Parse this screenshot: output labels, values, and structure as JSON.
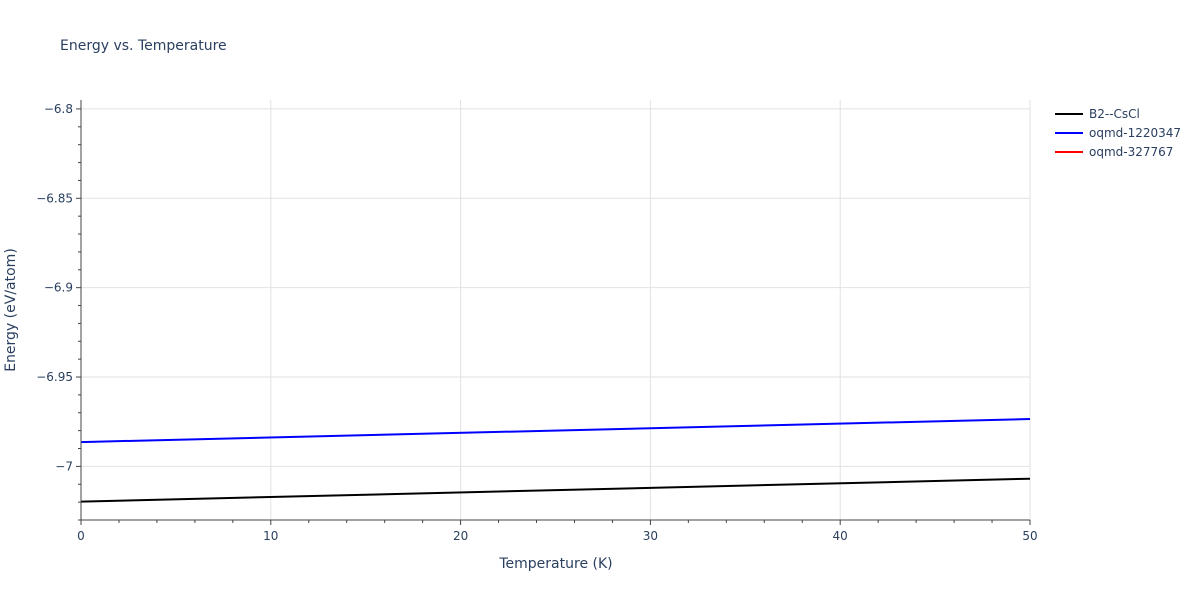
{
  "chart_data": {
    "type": "line",
    "title": "Energy vs. Temperature",
    "xlabel": "Temperature (K)",
    "ylabel": "Energy (eV/atom)",
    "xlim": [
      0,
      50
    ],
    "ylim": [
      -7.03,
      -6.795
    ],
    "x_ticks": [
      0,
      10,
      20,
      30,
      40,
      50
    ],
    "y_ticks": [
      -6.8,
      -6.85,
      -6.9,
      -6.95,
      -7
    ],
    "x_tick_labels": [
      "0",
      "10",
      "20",
      "30",
      "40",
      "50"
    ],
    "y_tick_labels": [
      "−6.8",
      "−6.85",
      "−6.9",
      "−6.95",
      "−7"
    ],
    "grid": true,
    "legend_position": "top-right",
    "series": [
      {
        "name": "B2--CsCl",
        "color": "#000000",
        "x": [
          0,
          50
        ],
        "y": [
          -7.0197,
          -7.0069
        ]
      },
      {
        "name": "oqmd-1220347",
        "color": "#0000ff",
        "x": [
          0,
          50
        ],
        "y": [
          -6.9864,
          -6.9735
        ]
      },
      {
        "name": "oqmd-327767",
        "color": "#ff0000",
        "x": [],
        "y": []
      }
    ]
  }
}
